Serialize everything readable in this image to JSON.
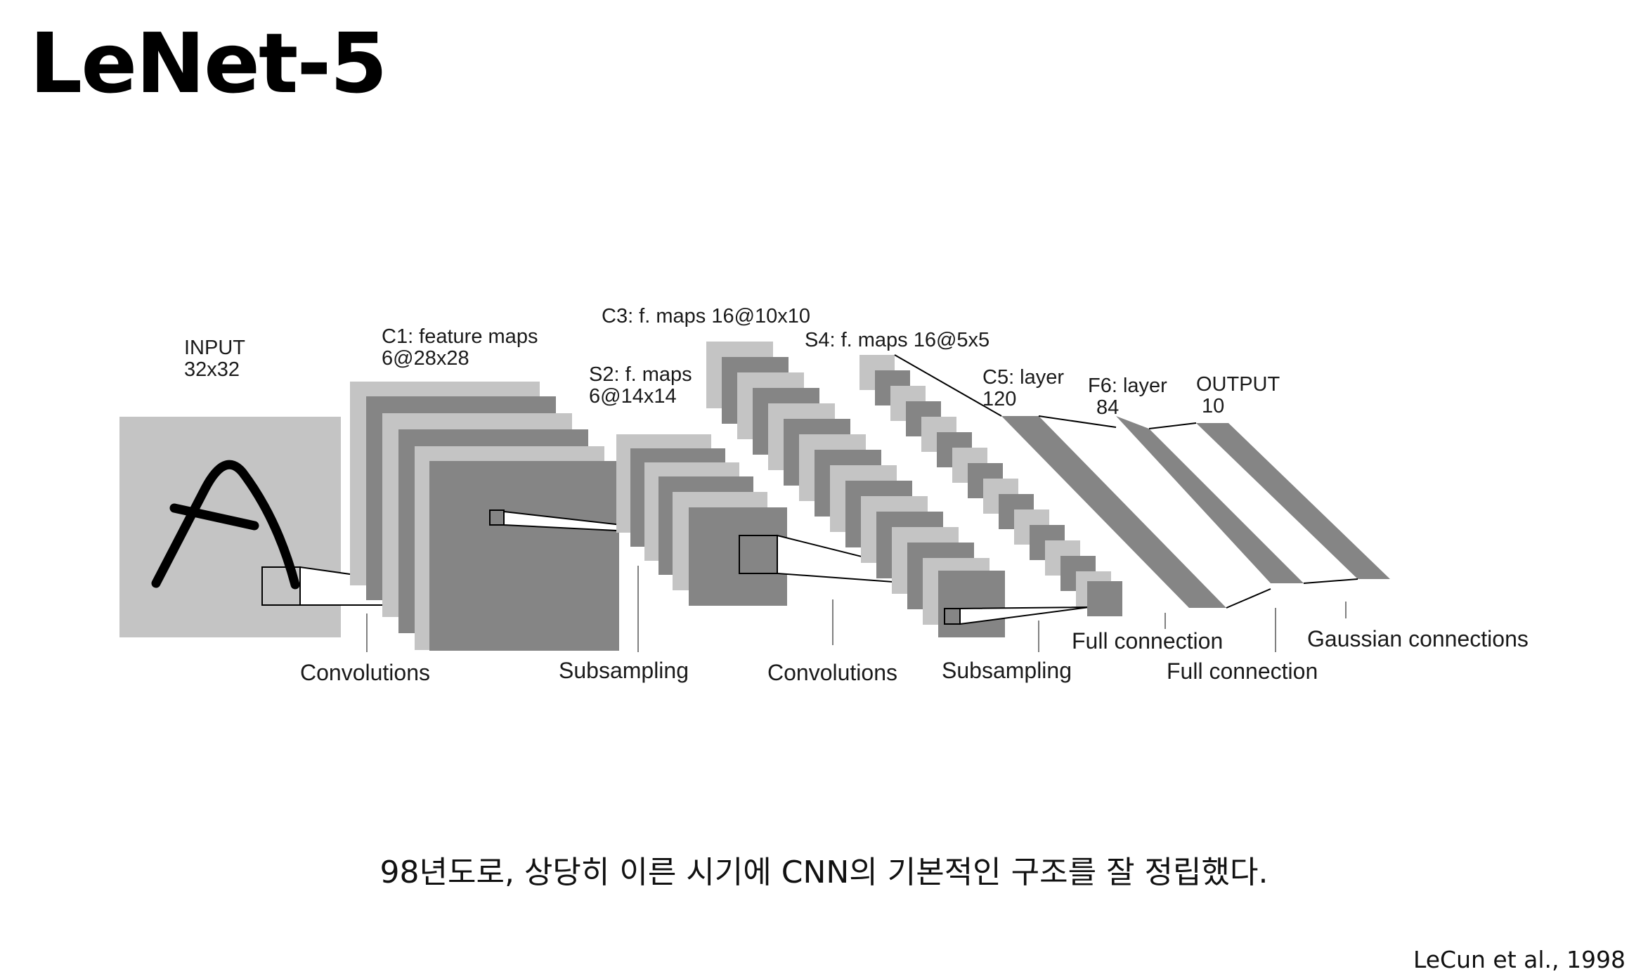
{
  "title": "LeNet-5",
  "diagram": {
    "layers": {
      "input_name": "INPUT",
      "input_size": "32x32",
      "c1_name": "C1: feature maps",
      "c1_size": "6@28x28",
      "s2_name": "S2: f. maps",
      "s2_size": "6@14x14",
      "c3": "C3: f. maps 16@10x10",
      "s4": "S4: f. maps 16@5x5",
      "c5_name": "C5: layer",
      "c5_size": "120",
      "f6_name": "F6: layer",
      "f6_size": "84",
      "output_name": "OUTPUT",
      "output_size": "10"
    },
    "operations": {
      "conv1": "Convolutions",
      "sub1": "Subsampling",
      "conv2": "Convolutions",
      "sub2": "Subsampling",
      "full1": "Full connection",
      "full2": "Full connection",
      "gauss": "Gaussian connections"
    },
    "colors": {
      "light": "#c4c4c4",
      "dark": "#858585",
      "line": "#000000"
    }
  },
  "caption": "98년도로, 상당히 이른 시기에 CNN의 기본적인 구조를 잘 정립했다.",
  "citation": "LeCun et al., 1998"
}
